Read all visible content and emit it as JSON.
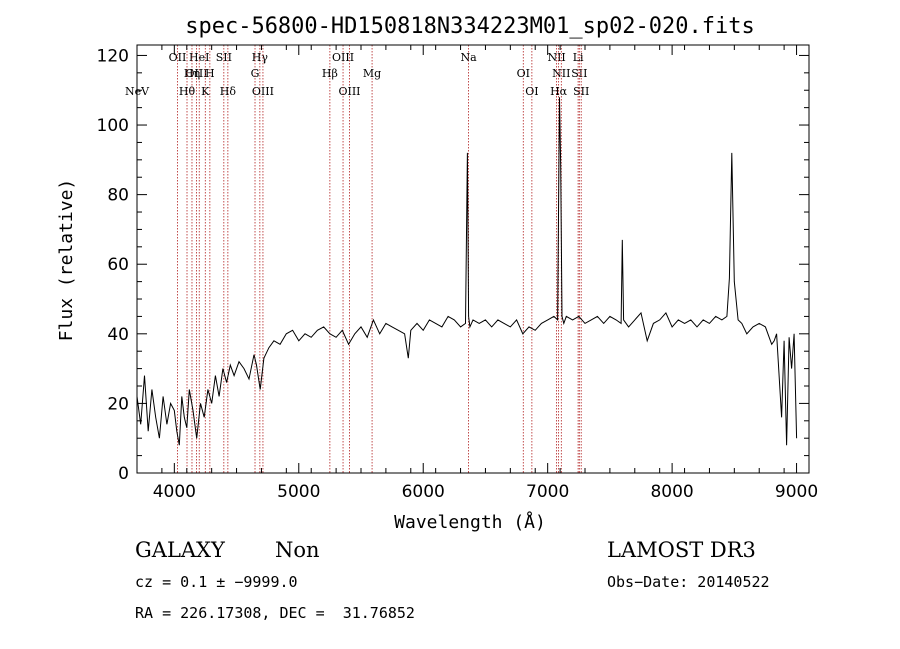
{
  "chart_data": {
    "type": "line",
    "title": "spec-56800-HD150818N334223M01_sp02-020.fits",
    "xlabel": "Wavelength (Å)",
    "ylabel": "Flux (relative)",
    "xlim": [
      3700,
      9100
    ],
    "ylim": [
      0,
      123
    ],
    "x_ticks": [
      4000,
      5000,
      6000,
      7000,
      8000,
      9000
    ],
    "y_ticks": [
      0,
      20,
      40,
      60,
      80,
      100,
      120
    ],
    "series": [
      {
        "name": "spectrum",
        "x": [
          3700,
          3730,
          3760,
          3790,
          3820,
          3850,
          3880,
          3910,
          3940,
          3970,
          4000,
          4020,
          4040,
          4060,
          4080,
          4100,
          4120,
          4150,
          4180,
          4210,
          4240,
          4270,
          4300,
          4330,
          4360,
          4390,
          4420,
          4450,
          4480,
          4520,
          4560,
          4600,
          4640,
          4660,
          4690,
          4720,
          4760,
          4800,
          4850,
          4900,
          4950,
          5000,
          5050,
          5100,
          5150,
          5200,
          5250,
          5300,
          5350,
          5400,
          5450,
          5500,
          5550,
          5600,
          5650,
          5700,
          5750,
          5800,
          5850,
          5880,
          5900,
          5950,
          6000,
          6050,
          6100,
          6150,
          6200,
          6250,
          6300,
          6340,
          6355,
          6365,
          6375,
          6400,
          6450,
          6500,
          6550,
          6600,
          6650,
          6700,
          6750,
          6800,
          6850,
          6900,
          6950,
          7000,
          7050,
          7080,
          7095,
          7105,
          7115,
          7130,
          7150,
          7200,
          7250,
          7300,
          7350,
          7400,
          7450,
          7500,
          7550,
          7590,
          7600,
          7610,
          7650,
          7700,
          7750,
          7800,
          7850,
          7900,
          7950,
          8000,
          8050,
          8100,
          8150,
          8200,
          8250,
          8300,
          8350,
          8400,
          8440,
          8460,
          8480,
          8500,
          8530,
          8560,
          8600,
          8650,
          8700,
          8750,
          8800,
          8820,
          8840,
          8860,
          8880,
          8900,
          8920,
          8940,
          8960,
          8980,
          9000
        ],
        "y": [
          22,
          14,
          28,
          12,
          24,
          16,
          10,
          22,
          14,
          20,
          18,
          12,
          8,
          22,
          16,
          13,
          24,
          18,
          10,
          20,
          16,
          24,
          20,
          28,
          22,
          30,
          26,
          31,
          28,
          32,
          30,
          27,
          34,
          31,
          24,
          33,
          36,
          38,
          37,
          40,
          41,
          38,
          40,
          39,
          41,
          42,
          40,
          39,
          41,
          37,
          40,
          42,
          39,
          44,
          40,
          43,
          42,
          41,
          40,
          33,
          41,
          43,
          41,
          44,
          43,
          42,
          45,
          44,
          42,
          43,
          92,
          45,
          42,
          44,
          43,
          44,
          42,
          44,
          43,
          42,
          44,
          40,
          42,
          41,
          43,
          44,
          45,
          44,
          108,
          88,
          45,
          43,
          45,
          44,
          45,
          43,
          44,
          45,
          43,
          45,
          44,
          43,
          67,
          44,
          42,
          44,
          46,
          38,
          43,
          44,
          46,
          42,
          44,
          43,
          44,
          42,
          44,
          43,
          45,
          44,
          45,
          56,
          92,
          55,
          44,
          43,
          40,
          42,
          43,
          42,
          37,
          38,
          40,
          28,
          16,
          38,
          8,
          39,
          30,
          40,
          10
        ]
      }
    ],
    "emission_lines": [
      {
        "label": "NeV",
        "x": 3426,
        "row": 3
      },
      {
        "label": "OII",
        "x": 3727,
        "row": 1
      },
      {
        "label": "OIII",
        "x": 3869,
        "row": 2
      },
      {
        "label": "HeI",
        "x": 3889,
        "row": 1
      },
      {
        "label": "Hη",
        "x": 3835,
        "row": 2
      },
      {
        "label": "Hθ",
        "x": 3798,
        "row": 3
      },
      {
        "label": "K",
        "x": 3934,
        "row": 3
      },
      {
        "label": "H",
        "x": 3968,
        "row": 2
      },
      {
        "label": "SII",
        "x": 4072,
        "row": 1
      },
      {
        "label": "Hδ",
        "x": 4102,
        "row": 3
      },
      {
        "label": "Hγ",
        "x": 4340,
        "row": 1
      },
      {
        "label": "G",
        "x": 4304,
        "row": 2
      },
      {
        "label": "OIII",
        "x": 4363,
        "row": 3
      },
      {
        "label": "OIII",
        "x": 4959,
        "row": 1
      },
      {
        "label": "Hβ",
        "x": 4861,
        "row": 2
      },
      {
        "label": "OIII",
        "x": 5007,
        "row": 3
      },
      {
        "label": "Mg",
        "x": 5175,
        "row": 2
      },
      {
        "label": "Na",
        "x": 5893,
        "row": 1
      },
      {
        "label": "OI",
        "x": 6300,
        "row": 2
      },
      {
        "label": "OI",
        "x": 6364,
        "row": 3
      },
      {
        "label": "NII",
        "x": 6548,
        "row": 1
      },
      {
        "label": "NII",
        "x": 6583,
        "row": 2
      },
      {
        "label": "Hα",
        "x": 6563,
        "row": 3
      },
      {
        "label": "SII",
        "x": 6717,
        "row": 2
      },
      {
        "label": "SII",
        "x": 6731,
        "row": 3
      },
      {
        "label": "Li",
        "x": 6708,
        "row": 1
      }
    ],
    "z_shift": 0.08
  },
  "info": {
    "class": "GALAXY",
    "subclass": "Non",
    "survey": "LAMOST DR3",
    "cz": "cz = 0.1 ± −9999.0",
    "obs_date": "Obs−Date: 20140522",
    "coords": "RA = 226.17308, DEC =  31.76852"
  },
  "colors": {
    "spectrum": "#000000",
    "line_marker": "#b22222",
    "axes": "#000000"
  }
}
